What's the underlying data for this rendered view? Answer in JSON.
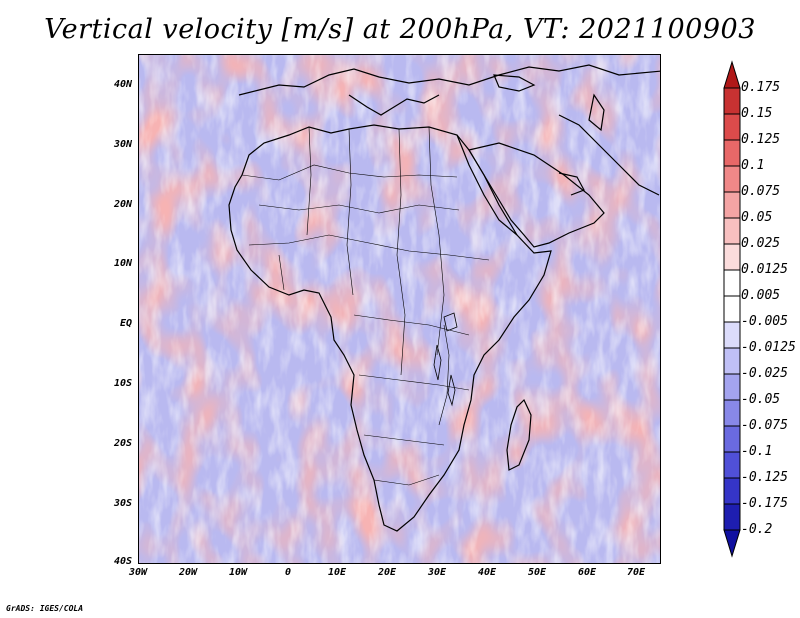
{
  "title": "Vertical velocity [m/s] at 200hPa, VT: 2021100903",
  "credit": "GrADS: IGES/COLA",
  "axes": {
    "lon_range": [
      -30,
      75
    ],
    "lat_range": [
      -40,
      45
    ],
    "lat_labels": [
      "40N",
      "30N",
      "20N",
      "10N",
      "EQ",
      "10S",
      "20S",
      "30S",
      "40S"
    ],
    "lon_labels": [
      "30W",
      "20W",
      "10W",
      "0",
      "10E",
      "20E",
      "30E",
      "40E",
      "50E",
      "60E",
      "70E"
    ]
  },
  "colorbar": {
    "labels": [
      "0.175",
      "0.15",
      "0.125",
      "0.1",
      "0.075",
      "0.05",
      "0.025",
      "0.0125",
      "0.005",
      "-0.005",
      "-0.0125",
      "-0.025",
      "-0.05",
      "-0.075",
      "-0.1",
      "-0.125",
      "-0.175",
      "-0.2"
    ],
    "colors": [
      "#b01818",
      "#c83232",
      "#dc4b4b",
      "#e86868",
      "#f08888",
      "#f4a4a4",
      "#f8c0c0",
      "#fbdcdc",
      "#ffffff",
      "#ffffff",
      "#dcdcfb",
      "#c0c0f6",
      "#a4a4ef",
      "#8888e8",
      "#6a6ae0",
      "#5050d8",
      "#3535c8",
      "#1e1eb0",
      "#1010a0"
    ]
  }
}
